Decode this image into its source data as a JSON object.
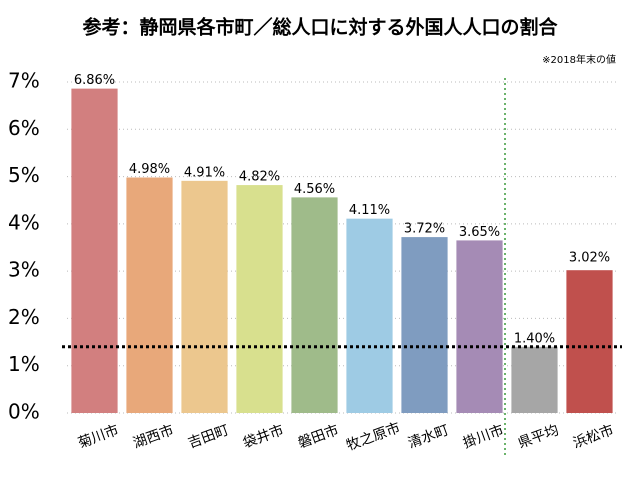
{
  "chart_data": {
    "type": "bar",
    "title": "参考：静岡県各市町／総人口に対する外国人人口の割合",
    "note": "※2018年末の値",
    "categories": [
      "菊川市",
      "湖西市",
      "吉田町",
      "袋井市",
      "磐田市",
      "牧之原市",
      "清水町",
      "掛川市",
      "県平均",
      "浜松市"
    ],
    "values": [
      6.86,
      4.98,
      4.91,
      4.82,
      4.56,
      4.11,
      3.72,
      3.65,
      1.4,
      3.02
    ],
    "value_labels": [
      "6.86%",
      "4.98%",
      "4.91%",
      "4.82%",
      "4.56%",
      "4.11%",
      "3.72%",
      "3.65%",
      "1.40%",
      "3.02%"
    ],
    "colors": [
      "#d27f7f",
      "#e8a87a",
      "#ecc78e",
      "#d8e08e",
      "#9fbb8a",
      "#9ecbe4",
      "#7f9cc0",
      "#a58bb5",
      "#a6a6a6",
      "#c0504d"
    ],
    "ylim": [
      0,
      7
    ],
    "yticks": [
      {
        "value": 0,
        "label": "0%"
      },
      {
        "value": 1,
        "label": "1%"
      },
      {
        "value": 2,
        "label": "2%"
      },
      {
        "value": 3,
        "label": "3%"
      },
      {
        "value": 4,
        "label": "4%"
      },
      {
        "value": 5,
        "label": "5%"
      },
      {
        "value": 6,
        "label": "6%"
      },
      {
        "value": 7,
        "label": "7%"
      }
    ],
    "grid": true
  }
}
